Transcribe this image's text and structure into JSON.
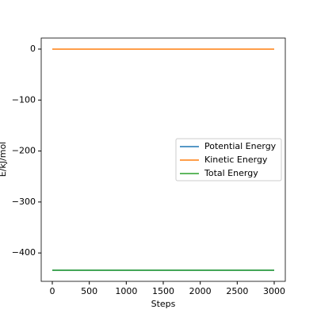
{
  "chart_data": {
    "type": "line",
    "xlabel": "Steps",
    "ylabel": "E/kJ/mol",
    "x": [
      0,
      3000
    ],
    "series": [
      {
        "name": "Potential Energy",
        "color": "#1f77b4",
        "values": [
          -434,
          -434
        ]
      },
      {
        "name": "Kinetic Energy",
        "color": "#ff7f0e",
        "values": [
          0,
          0
        ]
      },
      {
        "name": "Total Energy",
        "color": "#2ca02c",
        "values": [
          -434,
          -434
        ]
      }
    ],
    "xlim": [
      -150,
      3150
    ],
    "xticks": [
      0,
      500,
      1000,
      1500,
      2000,
      2500,
      3000
    ],
    "ylim": [
      -455.7,
      21.7
    ],
    "yticks": [
      0,
      {
        "value": -100,
        "label": "−100"
      },
      {
        "value": -200,
        "label": "−200"
      },
      {
        "value": -300,
        "label": "−300"
      },
      {
        "value": -400,
        "label": "−400"
      }
    ],
    "legend": "center right"
  }
}
